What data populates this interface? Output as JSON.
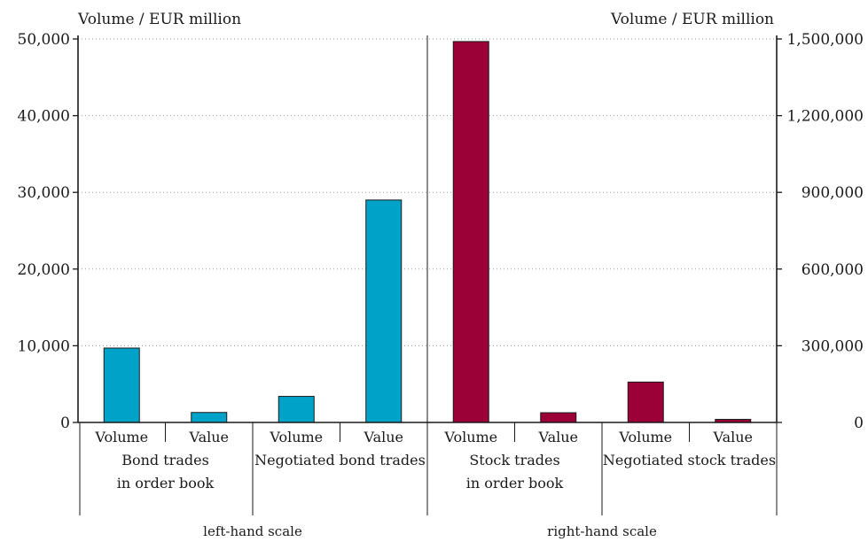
{
  "chart_data": {
    "type": "bar",
    "left_axis_title": "Volume / EUR million",
    "right_axis_title": "Volume / EUR million",
    "left_scale": {
      "ylim": [
        0,
        50000
      ],
      "ticks": [
        0,
        10000,
        20000,
        30000,
        40000,
        50000
      ],
      "tick_labels": [
        "0",
        "10,000",
        "20,000",
        "30,000",
        "40,000",
        "50,000"
      ]
    },
    "right_scale": {
      "ylim": [
        0,
        1500000
      ],
      "ticks": [
        0,
        300000,
        600000,
        900000,
        1200000,
        1500000
      ],
      "tick_labels": [
        "0",
        "300,000",
        "600,000",
        "900,000",
        "1,200,000",
        "1,500,000"
      ]
    },
    "categories": [
      "Volume",
      "Value",
      "Volume",
      "Value",
      "Volume",
      "Value",
      "Volume",
      "Value"
    ],
    "values": [
      9700,
      1300,
      3400,
      29000,
      1490000,
      38000,
      158000,
      12000
    ],
    "bar_scale": [
      "left",
      "left",
      "left",
      "left",
      "right",
      "right",
      "right",
      "right"
    ],
    "groups": [
      {
        "line1": "Bond trades",
        "line2": "in order book"
      },
      {
        "line1": "Negotiated bond trades",
        "line2": ""
      },
      {
        "line1": "Stock trades",
        "line2": "in order book"
      },
      {
        "line1": "Negotiated stock trades",
        "line2": ""
      }
    ],
    "scale_labels": [
      "left-hand scale",
      "right-hand scale"
    ],
    "colors": {
      "left": "#00a3c7",
      "right": "#9b0036"
    },
    "grid": true
  }
}
